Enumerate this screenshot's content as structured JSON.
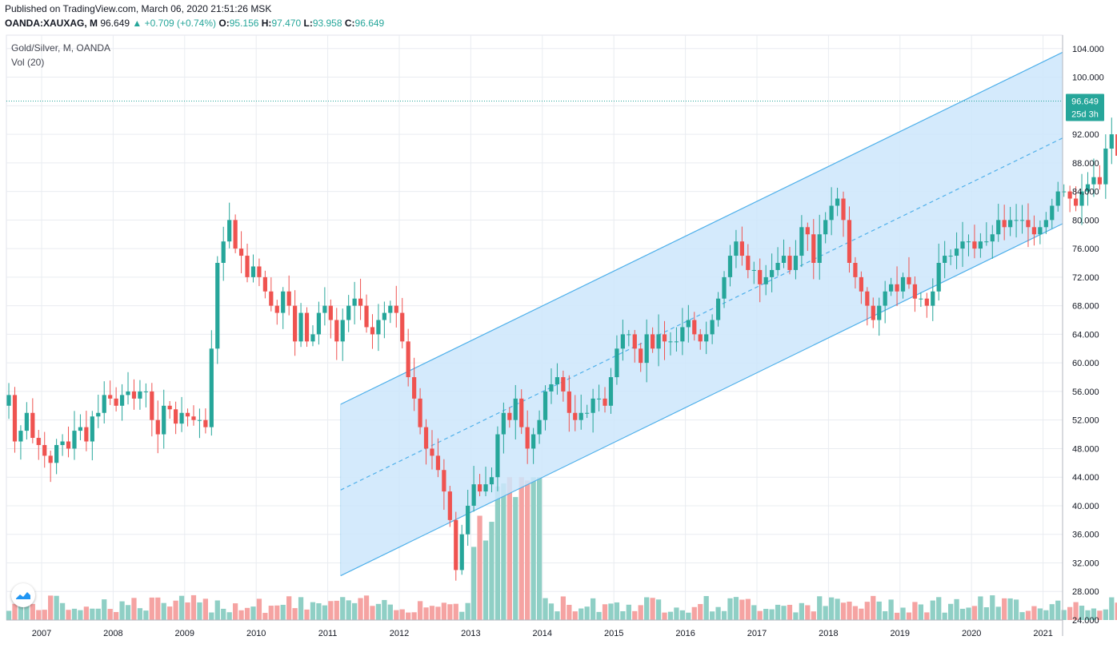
{
  "header": {
    "published": "Published on TradingView.com, March 06, 2020 21:51:26 MSK",
    "symbol": "OANDA:XAUXAG, M",
    "last": "96.649",
    "change": "+0.709 (+0.74%)",
    "o_label": "O:",
    "o_value": "95.156",
    "h_label": "H:",
    "h_value": "97.470",
    "l_label": "L:",
    "l_value": "93.958",
    "c_label": "C:",
    "c_value": "96.649"
  },
  "legend": {
    "series_title": "Gold/Silver, M, OANDA",
    "volume_title": "Vol (20)"
  },
  "price_badge": {
    "value": "96.649",
    "countdown": "25d 3h"
  },
  "colors": {
    "up": "#26a69a",
    "down": "#ef5350",
    "up_volume": "#8fcfc5",
    "down_volume": "#f5a3a2",
    "channel_line": "#4fb0ea",
    "channel_fill": "#cde6fb",
    "grid": "#e9ecf1"
  },
  "icons": {
    "logo": "tradingview-logo-icon",
    "up_arrow": "triangle-up-icon"
  },
  "chart_data": {
    "type": "candlestick",
    "interval": "monthly",
    "y_axis": {
      "min": 24,
      "max": 106,
      "ticks": [
        "104.000",
        "100.000",
        "96.000",
        "92.000",
        "88.000",
        "84.000",
        "80.000",
        "76.000",
        "72.000",
        "68.000",
        "64.000",
        "60.000",
        "56.000",
        "52.000",
        "48.000",
        "44.000",
        "40.000",
        "36.000",
        "32.000",
        "28.000",
        "24.000"
      ]
    },
    "x_axis": {
      "start_year": 2006.5,
      "end_year": 2021.4,
      "ticks": [
        "2007",
        "2008",
        "2009",
        "2010",
        "2011",
        "2012",
        "2013",
        "2014",
        "2015",
        "2016",
        "2017",
        "2018",
        "2019",
        "2020",
        "2021"
      ]
    },
    "grid": true,
    "monthly_close": [
      55.5,
      49,
      50.5,
      53,
      49.5,
      48.5,
      47,
      46,
      48.5,
      49,
      48,
      50.5,
      51,
      49,
      52.5,
      53,
      55.5,
      55,
      54,
      55.5,
      56,
      55,
      56,
      56,
      52,
      50,
      54,
      53.5,
      51.5,
      53,
      52.5,
      52,
      52,
      51,
      62,
      74,
      77,
      80,
      76,
      75,
      72,
      73.5,
      72,
      70,
      68,
      67,
      70,
      68,
      63,
      67,
      63,
      64,
      67,
      68,
      66,
      63,
      66,
      68,
      69,
      68,
      65,
      64,
      66,
      67,
      68,
      67,
      63,
      58,
      55,
      51,
      48,
      47,
      45,
      42,
      38,
      31,
      36,
      40,
      43,
      42,
      43,
      44,
      50,
      53,
      52,
      55,
      51,
      48,
      50,
      52,
      56,
      57,
      58,
      56,
      53,
      52,
      53,
      53,
      55,
      55,
      54,
      58,
      62,
      64,
      64,
      62,
      60,
      64,
      62,
      64,
      63,
      63,
      63,
      65,
      66,
      64,
      63,
      64,
      66,
      69,
      72,
      75,
      77,
      75,
      73,
      73,
      71,
      72,
      73,
      74,
      75,
      73,
      75,
      79,
      78,
      74,
      78,
      80,
      82,
      83,
      80,
      74,
      72,
      70,
      68,
      66,
      68,
      70,
      71,
      70,
      72,
      71,
      69,
      69,
      68,
      70,
      74,
      75,
      75,
      76,
      77,
      77,
      76,
      77,
      77,
      78,
      80,
      79,
      80,
      80,
      80,
      79,
      78,
      79,
      80,
      82,
      84,
      84,
      83,
      82,
      84,
      85,
      86,
      85,
      90,
      92,
      89,
      82,
      87,
      86,
      84,
      84,
      88,
      95,
      96.649
    ],
    "channel": {
      "start_year": 2011.18,
      "end_year": 2021.4,
      "lower_start": 30.2,
      "upper_start": 54.2,
      "upper_end": 104.1
    },
    "volume": {
      "axis_min": 24,
      "axis_max": 44,
      "note": "volume values expressed on the price scale of the lower pane"
    }
  }
}
